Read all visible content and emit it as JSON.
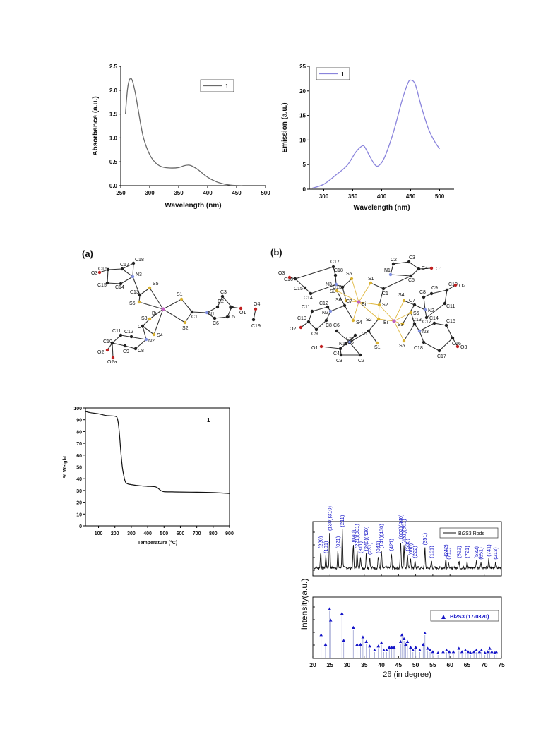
{
  "colors": {
    "gray": "#6a6a6a",
    "violet": "#8a84dc",
    "black": "#111111",
    "blue": "#1515c8"
  },
  "chart_data": [
    {
      "type": "line",
      "xlabel": "Wavelength (nm)",
      "ylabel": "Absorbance (a.u.)",
      "xlim": [
        250,
        500
      ],
      "ylim": [
        0,
        2.5
      ],
      "xticks": [
        "250",
        "300",
        "350",
        "400",
        "450",
        "500"
      ],
      "yticks": [
        "0.0",
        "0.5",
        "1.0",
        "1.5",
        "2.0",
        "2.5"
      ],
      "legend": "top-right",
      "series": [
        {
          "name": "1",
          "x": [
            258,
            262,
            266,
            270,
            275,
            280,
            285,
            290,
            300,
            310,
            320,
            335,
            350,
            360,
            368,
            375,
            385,
            395,
            405,
            420,
            440,
            460
          ],
          "y": [
            1.5,
            2.05,
            2.24,
            2.2,
            1.95,
            1.6,
            1.25,
            0.97,
            0.65,
            0.48,
            0.4,
            0.37,
            0.38,
            0.42,
            0.43,
            0.4,
            0.32,
            0.22,
            0.14,
            0.06,
            0.01,
            0.0
          ]
        }
      ]
    },
    {
      "type": "line",
      "xlabel": "Wavelength (nm)",
      "ylabel": "Emission (a.u.)",
      "xlim": [
        275,
        525
      ],
      "ylim": [
        0,
        25
      ],
      "xticks": [
        "300",
        "350",
        "400",
        "450",
        "500"
      ],
      "yticks": [
        "0",
        "5",
        "10",
        "15",
        "20",
        "25"
      ],
      "legend": "top-left",
      "series": [
        {
          "name": "1",
          "x": [
            280,
            300,
            320,
            340,
            355,
            365,
            370,
            378,
            388,
            395,
            405,
            420,
            435,
            445,
            450,
            458,
            468,
            480,
            490,
            500
          ],
          "y": [
            0.2,
            1.0,
            2.8,
            4.8,
            7.5,
            8.7,
            8.7,
            7.0,
            5.0,
            4.8,
            6.5,
            11.5,
            18.0,
            21.5,
            22.2,
            21.3,
            17.0,
            12.5,
            10.0,
            8.2
          ]
        }
      ]
    },
    {
      "type": "line",
      "xlabel": "Temperature (°C)",
      "ylabel": "% Weight",
      "xlim": [
        20,
        900
      ],
      "ylim": [
        0,
        100
      ],
      "xticks": [
        "100",
        "200",
        "300",
        "400",
        "500",
        "600",
        "700",
        "800",
        "900"
      ],
      "yticks": [
        "0",
        "10",
        "20",
        "30",
        "40",
        "50",
        "60",
        "70",
        "80",
        "90",
        "100"
      ],
      "annotation": "1",
      "series": [
        {
          "name": "1",
          "x": [
            20,
            50,
            100,
            150,
            200,
            215,
            225,
            235,
            245,
            255,
            265,
            280,
            300,
            350,
            400,
            450,
            480,
            500,
            550,
            600,
            700,
            800,
            900
          ],
          "y": [
            97,
            96,
            95,
            93.5,
            93,
            91,
            82,
            65,
            50,
            42,
            37,
            35.5,
            35,
            34,
            33.5,
            33,
            30,
            29,
            28.8,
            28.7,
            28.5,
            28.2,
            27.5
          ]
        }
      ]
    },
    {
      "type": "line",
      "xlabel": "2θ (in degree)",
      "ylabel": "Intensity(a.u.)",
      "xlim": [
        20,
        75
      ],
      "xticks": [
        "20",
        "25",
        "30",
        "35",
        "40",
        "45",
        "50",
        "55",
        "60",
        "65",
        "70",
        "75"
      ],
      "legend_top": "Bi2S3 Rods",
      "legend_bottom": "Bi2S3 (17-0320)",
      "peaks": [
        {
          "x": 22.3,
          "h": 0.35,
          "label": "(220)"
        },
        {
          "x": 23.8,
          "h": 0.25,
          "label": "(101)"
        },
        {
          "x": 24.9,
          "h": 0.72,
          "label": "(130)(310)"
        },
        {
          "x": 27.3,
          "h": 0.35,
          "label": "(021)"
        },
        {
          "x": 28.6,
          "h": 0.8,
          "label": "(211)"
        },
        {
          "x": 31.8,
          "h": 0.48,
          "label": "(040)"
        },
        {
          "x": 32.9,
          "h": 0.35,
          "label": "(221)(301)"
        },
        {
          "x": 33.9,
          "h": 0.25,
          "label": "(311)"
        },
        {
          "x": 35.6,
          "h": 0.3,
          "label": "(240)(420)"
        },
        {
          "x": 36.6,
          "h": 0.22,
          "label": "(231)"
        },
        {
          "x": 39.1,
          "h": 0.25,
          "label": "(041)"
        },
        {
          "x": 40.0,
          "h": 0.35,
          "label": "(141)(430)"
        },
        {
          "x": 42.9,
          "h": 0.3,
          "label": "(421)"
        },
        {
          "x": 45.6,
          "h": 0.55,
          "label": "(002)(440)"
        },
        {
          "x": 46.6,
          "h": 0.45,
          "label": "(431)(501)"
        },
        {
          "x": 47.6,
          "h": 0.3,
          "label": "(530)"
        },
        {
          "x": 48.5,
          "h": 0.2,
          "label": "(060)"
        },
        {
          "x": 49.8,
          "h": 0.15,
          "label": "(222)"
        },
        {
          "x": 52.7,
          "h": 0.42,
          "label": "(351)"
        },
        {
          "x": 54.6,
          "h": 0.15,
          "label": "(161)"
        },
        {
          "x": 58.8,
          "h": 0.18,
          "label": "(242)"
        },
        {
          "x": 59.6,
          "h": 0.12,
          "label": "(711)"
        },
        {
          "x": 62.6,
          "h": 0.15,
          "label": "(522)"
        },
        {
          "x": 65.0,
          "h": 0.15,
          "label": "(721)"
        },
        {
          "x": 67.7,
          "h": 0.14,
          "label": "(532)"
        },
        {
          "x": 69.0,
          "h": 0.12,
          "label": "(651)"
        },
        {
          "x": 71.3,
          "h": 0.18,
          "label": "(741)"
        },
        {
          "x": 73.3,
          "h": 0.12,
          "label": "(213)"
        }
      ],
      "reference": [
        {
          "x": 22.4,
          "h": 0.42
        },
        {
          "x": 23.7,
          "h": 0.25
        },
        {
          "x": 24.9,
          "h": 0.88
        },
        {
          "x": 25.2,
          "h": 0.68
        },
        {
          "x": 28.5,
          "h": 0.8
        },
        {
          "x": 29.0,
          "h": 0.32
        },
        {
          "x": 31.8,
          "h": 0.55
        },
        {
          "x": 32.9,
          "h": 0.25
        },
        {
          "x": 33.9,
          "h": 0.25
        },
        {
          "x": 34.6,
          "h": 0.38
        },
        {
          "x": 35.6,
          "h": 0.3
        },
        {
          "x": 36.6,
          "h": 0.22
        },
        {
          "x": 38.0,
          "h": 0.15
        },
        {
          "x": 39.1,
          "h": 0.22
        },
        {
          "x": 40.0,
          "h": 0.28
        },
        {
          "x": 40.7,
          "h": 0.15
        },
        {
          "x": 41.5,
          "h": 0.15
        },
        {
          "x": 42.3,
          "h": 0.2
        },
        {
          "x": 43.0,
          "h": 0.2
        },
        {
          "x": 43.7,
          "h": 0.2
        },
        {
          "x": 45.6,
          "h": 0.3
        },
        {
          "x": 46.0,
          "h": 0.42
        },
        {
          "x": 46.6,
          "h": 0.35
        },
        {
          "x": 47.1,
          "h": 0.25
        },
        {
          "x": 47.6,
          "h": 0.3
        },
        {
          "x": 48.5,
          "h": 0.2
        },
        {
          "x": 49.2,
          "h": 0.15
        },
        {
          "x": 50.0,
          "h": 0.2
        },
        {
          "x": 51.2,
          "h": 0.15
        },
        {
          "x": 52.2,
          "h": 0.25
        },
        {
          "x": 52.7,
          "h": 0.45
        },
        {
          "x": 53.5,
          "h": 0.18
        },
        {
          "x": 54.2,
          "h": 0.15
        },
        {
          "x": 55.0,
          "h": 0.12
        },
        {
          "x": 56.5,
          "h": 0.1
        },
        {
          "x": 58.0,
          "h": 0.12
        },
        {
          "x": 59.0,
          "h": 0.15
        },
        {
          "x": 59.8,
          "h": 0.12
        },
        {
          "x": 61.0,
          "h": 0.12
        },
        {
          "x": 62.6,
          "h": 0.18
        },
        {
          "x": 63.5,
          "h": 0.12
        },
        {
          "x": 64.5,
          "h": 0.15
        },
        {
          "x": 65.3,
          "h": 0.12
        },
        {
          "x": 66.0,
          "h": 0.1
        },
        {
          "x": 67.0,
          "h": 0.12
        },
        {
          "x": 67.7,
          "h": 0.15
        },
        {
          "x": 68.6,
          "h": 0.12
        },
        {
          "x": 69.2,
          "h": 0.15
        },
        {
          "x": 70.2,
          "h": 0.1
        },
        {
          "x": 71.0,
          "h": 0.12
        },
        {
          "x": 71.6,
          "h": 0.18
        },
        {
          "x": 72.2,
          "h": 0.12
        },
        {
          "x": 73.0,
          "h": 0.1
        },
        {
          "x": 73.5,
          "h": 0.12
        }
      ]
    }
  ],
  "structures": {
    "panel_a": {
      "tag": "(a)",
      "atoms": [
        {
          "l": "Bi",
          "k": "bi"
        },
        {
          "l": "S1",
          "k": "s"
        },
        {
          "l": "S2",
          "k": "s"
        },
        {
          "l": "S3",
          "k": "s"
        },
        {
          "l": "S4",
          "k": "s"
        },
        {
          "l": "S5",
          "k": "s"
        },
        {
          "l": "S6",
          "k": "s"
        },
        {
          "l": "C1",
          "k": "c"
        },
        {
          "l": "N1",
          "k": "n"
        },
        {
          "l": "C2",
          "k": "c"
        },
        {
          "l": "C3",
          "k": "c"
        },
        {
          "l": "C4",
          "k": "c"
        },
        {
          "l": "C5",
          "k": "c"
        },
        {
          "l": "C6",
          "k": "c"
        },
        {
          "l": "O1",
          "k": "o"
        },
        {
          "l": "O4",
          "k": "o"
        },
        {
          "l": "C19",
          "k": "c"
        },
        {
          "l": "C7",
          "k": "c"
        },
        {
          "l": "N2",
          "k": "n"
        },
        {
          "l": "C11",
          "k": "c"
        },
        {
          "l": "C12",
          "k": "c"
        },
        {
          "l": "C10",
          "k": "c"
        },
        {
          "l": "C9",
          "k": "c"
        },
        {
          "l": "C8",
          "k": "c"
        },
        {
          "l": "O2",
          "k": "o"
        },
        {
          "l": "O2a",
          "k": "o"
        },
        {
          "l": "C13",
          "k": "c"
        },
        {
          "l": "N3",
          "k": "n"
        },
        {
          "l": "C17",
          "k": "c"
        },
        {
          "l": "C18",
          "k": "c"
        },
        {
          "l": "C16",
          "k": "c"
        },
        {
          "l": "O3",
          "k": "o"
        },
        {
          "l": "C15",
          "k": "c"
        },
        {
          "l": "C14",
          "k": "c"
        }
      ]
    },
    "panel_b": {
      "tag": "(b)",
      "atoms": [
        {
          "l": "Bi",
          "k": "bi"
        },
        {
          "l": "Bi",
          "k": "bi"
        },
        {
          "l": "S1",
          "k": "s"
        },
        {
          "l": "S2",
          "k": "s"
        },
        {
          "l": "S5",
          "k": "s"
        },
        {
          "l": "S6",
          "k": "s"
        },
        {
          "l": "S3",
          "k": "s"
        },
        {
          "l": "S4",
          "k": "s"
        },
        {
          "l": "C1",
          "k": "c"
        },
        {
          "l": "C7",
          "k": "c"
        },
        {
          "l": "N1",
          "k": "n"
        },
        {
          "l": "C2",
          "k": "c"
        },
        {
          "l": "C3",
          "k": "c"
        },
        {
          "l": "C4",
          "k": "c"
        },
        {
          "l": "O1",
          "k": "o"
        },
        {
          "l": "C5",
          "k": "c"
        },
        {
          "l": "C13",
          "k": "c"
        },
        {
          "l": "N3",
          "k": "n"
        },
        {
          "l": "C17",
          "k": "c"
        },
        {
          "l": "C18",
          "k": "c"
        },
        {
          "l": "C16",
          "k": "c"
        },
        {
          "l": "O3",
          "k": "o"
        },
        {
          "l": "C15",
          "k": "c"
        },
        {
          "l": "C14",
          "k": "c"
        },
        {
          "l": "N2",
          "k": "n"
        },
        {
          "l": "C12",
          "k": "c"
        },
        {
          "l": "C11",
          "k": "c"
        },
        {
          "l": "C10",
          "k": "c"
        },
        {
          "l": "O2",
          "k": "o"
        },
        {
          "l": "C9",
          "k": "c"
        },
        {
          "l": "C8",
          "k": "c"
        },
        {
          "l": "C6",
          "k": "c"
        },
        {
          "l": "C1",
          "k": "c"
        },
        {
          "l": "S1",
          "k": "s"
        },
        {
          "l": "S2",
          "k": "s"
        },
        {
          "l": "S4",
          "k": "s"
        },
        {
          "l": "S5",
          "k": "s"
        },
        {
          "l": "S3",
          "k": "s"
        },
        {
          "l": "S6",
          "k": "s"
        },
        {
          "l": "N1",
          "k": "n"
        },
        {
          "l": "C5",
          "k": "c"
        },
        {
          "l": "C4",
          "k": "c"
        },
        {
          "l": "O1",
          "k": "o"
        },
        {
          "l": "C3",
          "k": "c"
        },
        {
          "l": "C2",
          "k": "c"
        },
        {
          "l": "C6",
          "k": "c"
        },
        {
          "l": "C7",
          "k": "c"
        },
        {
          "l": "N2",
          "k": "n"
        },
        {
          "l": "C8",
          "k": "c"
        },
        {
          "l": "C9",
          "k": "c"
        },
        {
          "l": "C10",
          "k": "c"
        },
        {
          "l": "O2",
          "k": "o"
        },
        {
          "l": "C11",
          "k": "c"
        },
        {
          "l": "C12",
          "k": "c"
        },
        {
          "l": "C13",
          "k": "c"
        },
        {
          "l": "N3",
          "k": "n"
        },
        {
          "l": "C14",
          "k": "c"
        },
        {
          "l": "C15",
          "k": "c"
        },
        {
          "l": "C16",
          "k": "c"
        },
        {
          "l": "O3",
          "k": "o"
        },
        {
          "l": "C17",
          "k": "c"
        },
        {
          "l": "C18",
          "k": "c"
        }
      ]
    }
  }
}
